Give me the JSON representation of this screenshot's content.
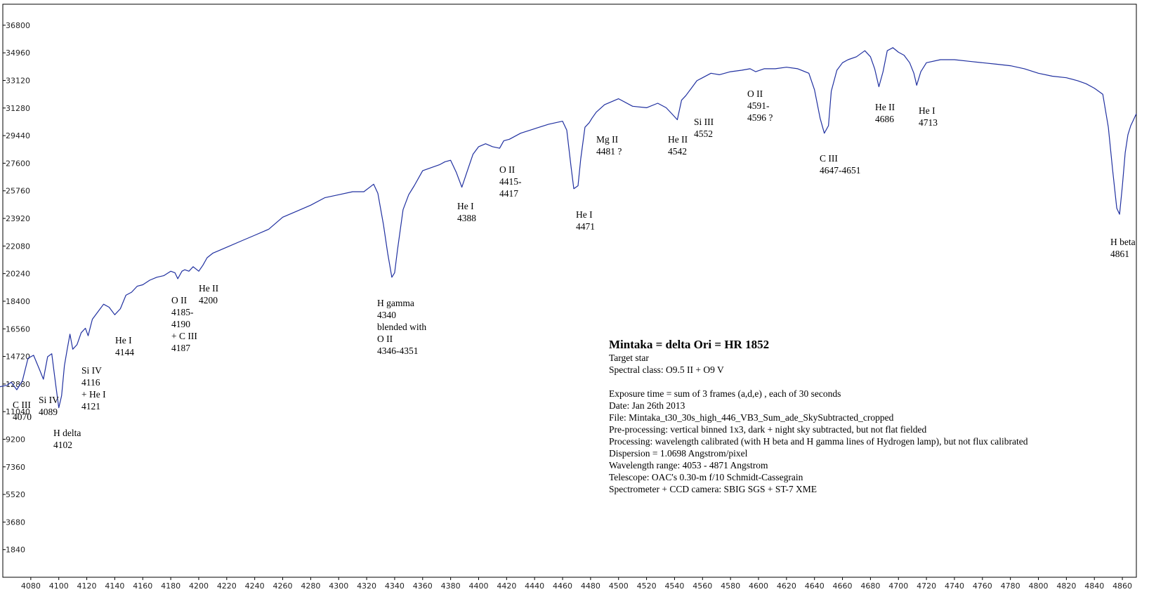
{
  "chart_data": {
    "type": "line",
    "title": "",
    "xlabel": "",
    "ylabel": "",
    "xlim": [
      4060,
      4870
    ],
    "ylim": [
      0,
      38200
    ],
    "grid": false,
    "line_color": "#2030a0",
    "x_ticks": [
      4080,
      4100,
      4120,
      4140,
      4160,
      4180,
      4200,
      4220,
      4240,
      4260,
      4280,
      4300,
      4320,
      4340,
      4360,
      4380,
      4400,
      4420,
      4440,
      4460,
      4480,
      4500,
      4520,
      4540,
      4560,
      4580,
      4600,
      4620,
      4640,
      4660,
      4680,
      4700,
      4720,
      4740,
      4760,
      4780,
      4800,
      4820,
      4840,
      4860
    ],
    "y_ticks": [
      1840,
      3680,
      5520,
      7360,
      9200,
      11040,
      12880,
      14720,
      16560,
      18400,
      20240,
      22080,
      23920,
      25760,
      27600,
      29440,
      31280,
      33120,
      34960,
      36800
    ],
    "series": [
      {
        "x": [
          4053,
          4058,
          4063,
          4066,
          4070,
          4074,
          4078,
          4082,
          4086,
          4089,
          4092,
          4095,
          4098,
          4100,
          4102,
          4104,
          4106,
          4108,
          4110,
          4113,
          4116,
          4119,
          4121,
          4124,
          4128,
          4132,
          4136,
          4140,
          4144,
          4148,
          4152,
          4156,
          4160,
          4165,
          4170,
          4175,
          4180,
          4183,
          4185,
          4188,
          4190,
          4193,
          4196,
          4200,
          4203,
          4206,
          4210,
          4215,
          4220,
          4230,
          4240,
          4250,
          4260,
          4270,
          4280,
          4290,
          4300,
          4310,
          4318,
          4325,
          4328,
          4332,
          4335,
          4338,
          4340,
          4342,
          4346,
          4350,
          4354,
          4360,
          4366,
          4372,
          4376,
          4380,
          4384,
          4388,
          4392,
          4396,
          4400,
          4405,
          4410,
          4415,
          4418,
          4422,
          4430,
          4440,
          4450,
          4460,
          4463,
          4466,
          4468,
          4471,
          4473,
          4476,
          4479,
          4481,
          4484,
          4490,
          4495,
          4500,
          4510,
          4520,
          4528,
          4534,
          4538,
          4542,
          4545,
          4548,
          4552,
          4556,
          4560,
          4566,
          4572,
          4580,
          4588,
          4594,
          4598,
          4604,
          4612,
          4620,
          4628,
          4636,
          4640,
          4644,
          4647,
          4650,
          4652,
          4656,
          4660,
          4664,
          4670,
          4676,
          4680,
          4683,
          4686,
          4689,
          4692,
          4696,
          4700,
          4704,
          4708,
          4711,
          4713,
          4716,
          4720,
          4730,
          4740,
          4750,
          4760,
          4770,
          4780,
          4790,
          4800,
          4810,
          4820,
          4828,
          4834,
          4840,
          4846,
          4850,
          4853,
          4856,
          4858,
          4860,
          4862,
          4864,
          4866,
          4868,
          4870
        ],
        "y": [
          13000,
          12700,
          12800,
          13000,
          12500,
          13100,
          14600,
          14800,
          13900,
          13200,
          14700,
          14900,
          12700,
          11300,
          12100,
          14100,
          15200,
          16200,
          15200,
          15500,
          16300,
          16600,
          16100,
          17200,
          17700,
          18200,
          18000,
          17500,
          17900,
          18800,
          19000,
          19400,
          19500,
          19800,
          20000,
          20100,
          20400,
          20300,
          19900,
          20400,
          20500,
          20400,
          20700,
          20400,
          20800,
          21300,
          21600,
          21800,
          22000,
          22400,
          22800,
          23200,
          24000,
          24400,
          24800,
          25300,
          25500,
          25700,
          25700,
          26200,
          25600,
          23500,
          21600,
          20000,
          20300,
          21800,
          24500,
          25500,
          26100,
          27100,
          27300,
          27500,
          27700,
          27800,
          27000,
          26000,
          27100,
          28200,
          28700,
          28900,
          28700,
          28600,
          29100,
          29200,
          29600,
          29900,
          30200,
          30400,
          29800,
          27400,
          25900,
          26100,
          27900,
          30000,
          30300,
          30600,
          31000,
          31500,
          31700,
          31900,
          31400,
          31300,
          31600,
          31300,
          30900,
          30500,
          31800,
          32100,
          32600,
          33100,
          33300,
          33600,
          33500,
          33700,
          33800,
          33900,
          33700,
          33900,
          33900,
          34000,
          33900,
          33600,
          32500,
          30600,
          29600,
          30100,
          32400,
          33800,
          34300,
          34500,
          34700,
          35100,
          34700,
          33900,
          32700,
          33700,
          35100,
          35300,
          35000,
          34800,
          34300,
          33600,
          32800,
          33700,
          34300,
          34500,
          34500,
          34400,
          34300,
          34200,
          34100,
          33900,
          33600,
          33400,
          33300,
          33100,
          32900,
          32600,
          32200,
          30000,
          27200,
          24600,
          24200,
          26100,
          28300,
          29500,
          30100,
          30500,
          30900
        ]
      }
    ],
    "annotations": [
      {
        "lines": [
          "C III",
          "4070"
        ]
      },
      {
        "lines": [
          "Si IV",
          "4089"
        ]
      },
      {
        "lines": [
          "H delta",
          "4102"
        ]
      },
      {
        "lines": [
          "Si IV",
          "4116",
          "+ He I",
          "4121"
        ]
      },
      {
        "lines": [
          "He I",
          "4144"
        ]
      },
      {
        "lines": [
          "O II",
          "4185-",
          "4190",
          "+ C III",
          "4187"
        ]
      },
      {
        "lines": [
          "He II",
          "4200"
        ]
      },
      {
        "lines": [
          "H gamma",
          "4340",
          "blended with",
          "O II",
          "4346-4351"
        ]
      },
      {
        "lines": [
          "He I",
          "4388"
        ]
      },
      {
        "lines": [
          "O II",
          "4415-",
          "4417"
        ]
      },
      {
        "lines": [
          "He I",
          "4471"
        ]
      },
      {
        "lines": [
          "Mg II",
          "4481 ?"
        ]
      },
      {
        "lines": [
          "He II",
          "4542"
        ]
      },
      {
        "lines": [
          "Si III",
          "4552"
        ]
      },
      {
        "lines": [
          "O II",
          "4591-",
          "4596 ?"
        ]
      },
      {
        "lines": [
          "C III",
          "4647-4651"
        ]
      },
      {
        "lines": [
          "He II",
          "4686"
        ]
      },
      {
        "lines": [
          "He I",
          "4713"
        ]
      },
      {
        "lines": [
          "H beta",
          "4861"
        ]
      }
    ]
  },
  "info_box": {
    "title": "Mintaka = delta Ori = HR 1852",
    "lines": [
      "Target star",
      "Spectral class: O9.5 II + O9 V",
      "",
      "Exposure time = sum of 3 frames (a,d,e) , each of 30 seconds",
      "Date: Jan 26th 2013",
      "File: Mintaka_t30_30s_high_446_VB3_Sum_ade_SkySubtracted_cropped",
      "Pre-processing: vertical binned 1x3, dark + night sky subtracted, but not flat fielded",
      "Processing: wavelength calibrated (with H beta and H gamma lines of Hydrogen lamp), but not flux calibrated",
      "Dispersion = 1.0698 Angstrom/pixel",
      "Wavelength range: 4053 - 4871 Angstrom",
      "Telescope: OAC's 0.30-m  f/10 Schmidt-Cassegrain",
      "Spectrometer + CCD camera: SBIG SGS + ST-7 XME"
    ]
  }
}
